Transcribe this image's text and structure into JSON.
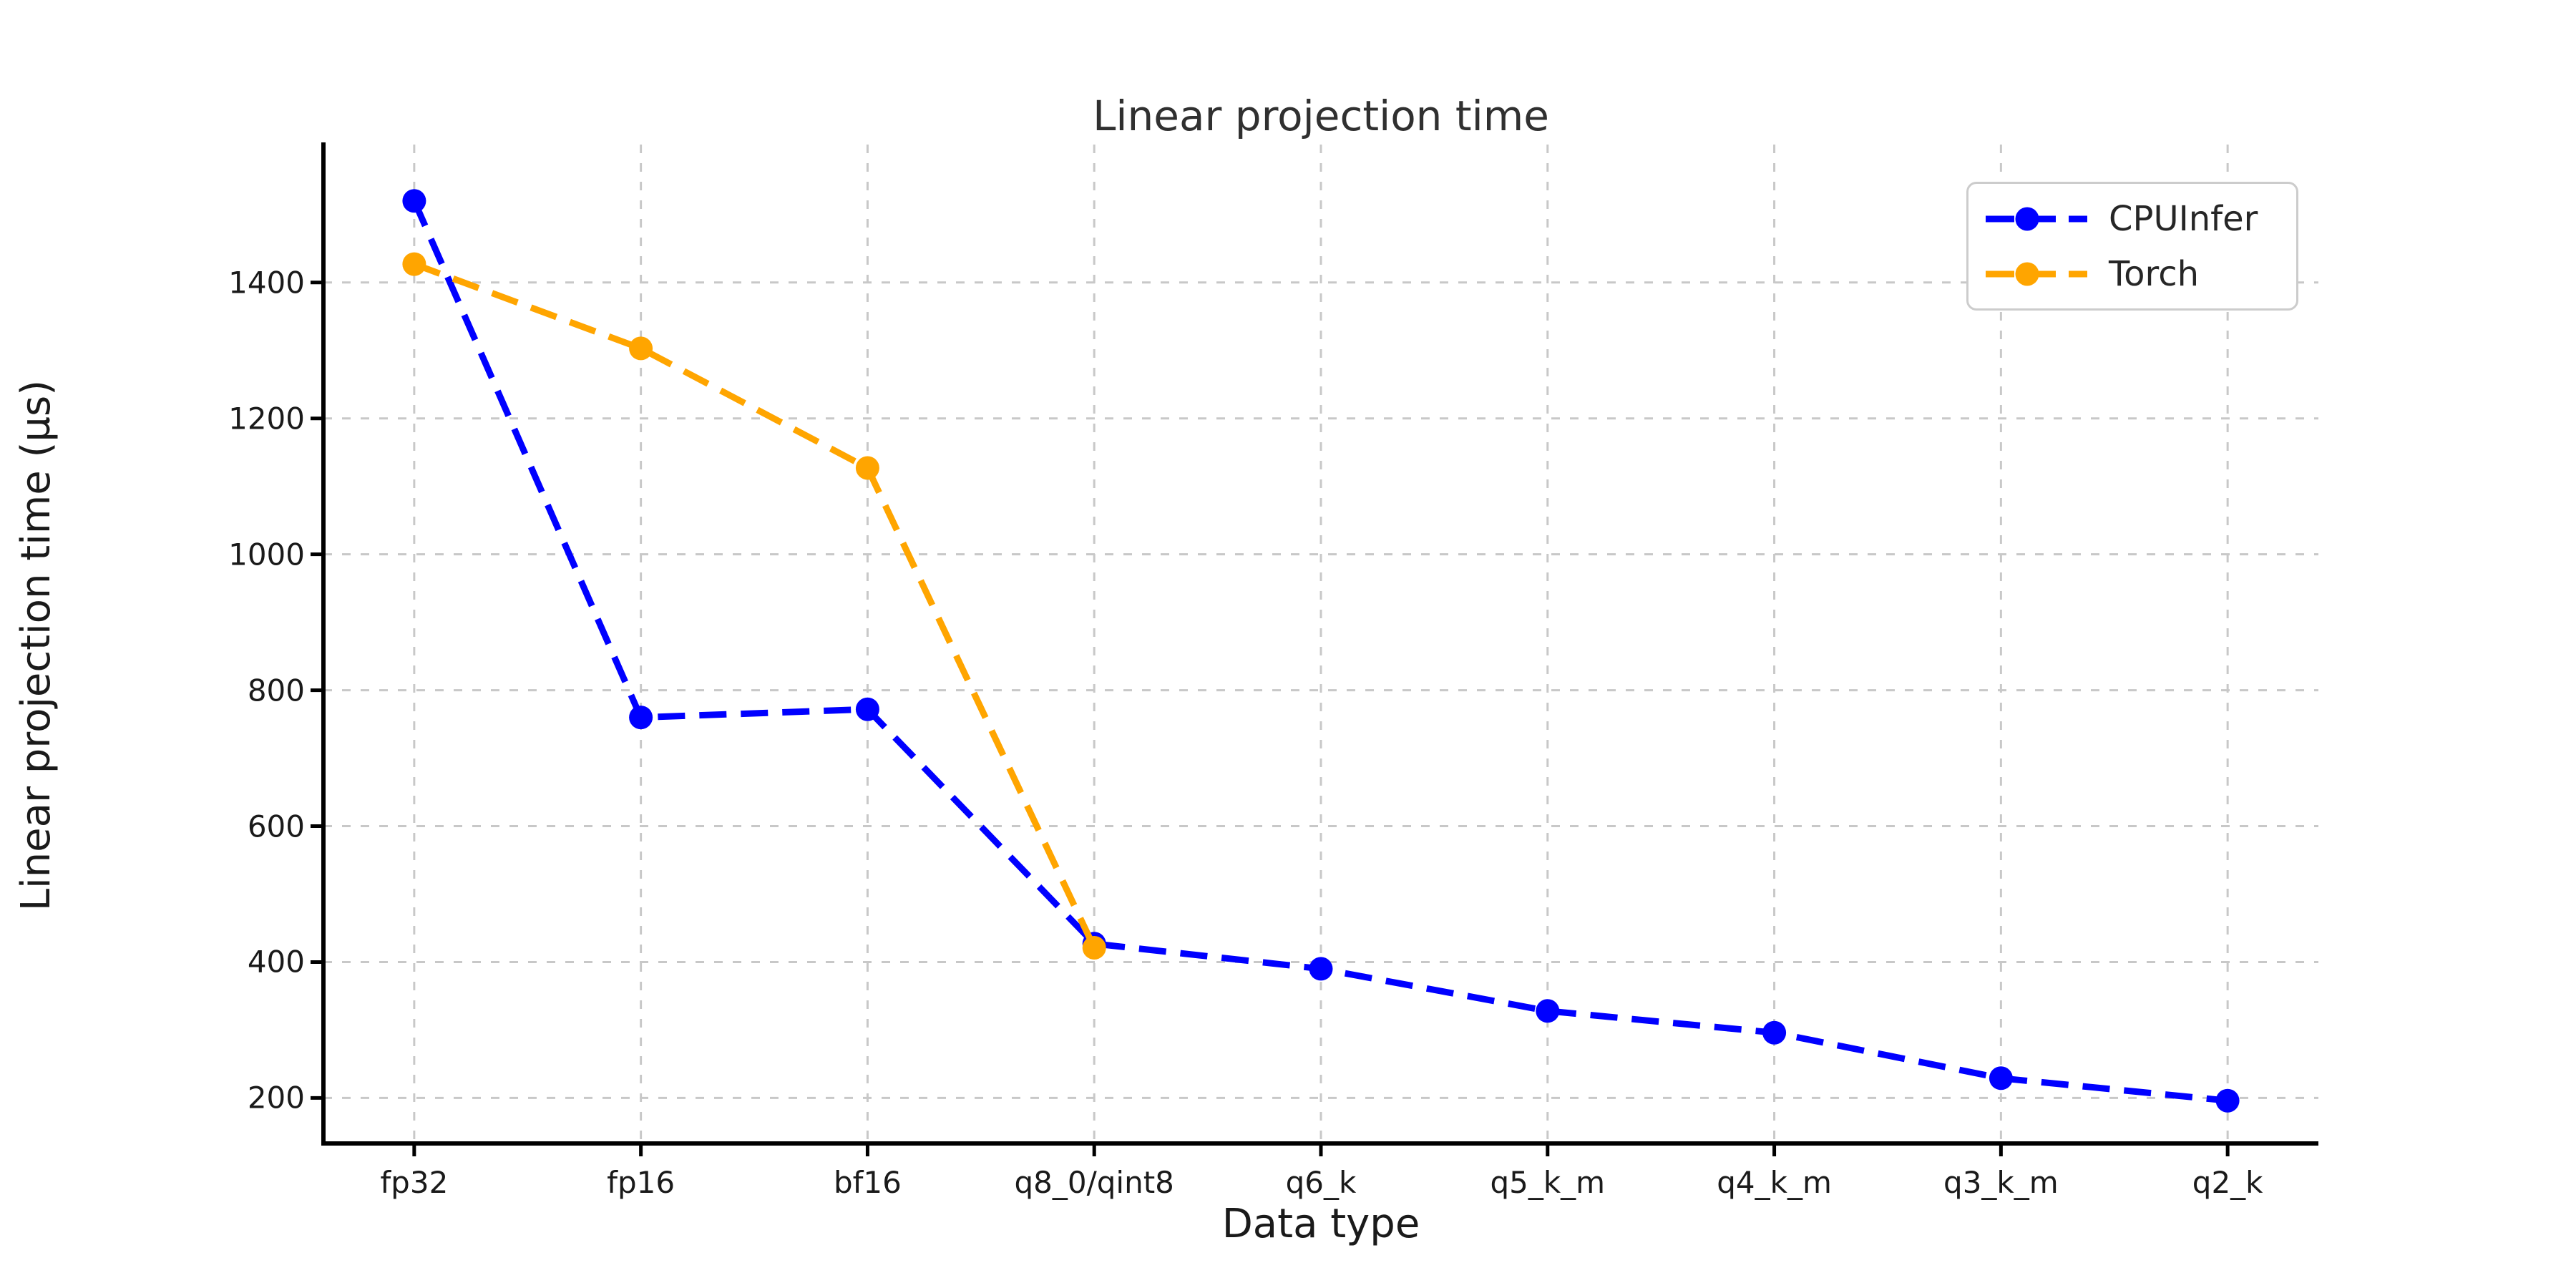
{
  "chart_data": {
    "type": "line",
    "title": "Linear projection time",
    "xlabel": "Data type",
    "ylabel": "Linear projection time (µs)",
    "categories": [
      "fp32",
      "fp16",
      "bf16",
      "q8_0/qint8",
      "q6_k",
      "q5_k_m",
      "q4_k_m",
      "q3_k_m",
      "q2_k"
    ],
    "series": [
      {
        "name": "CPUInfer",
        "color": "#0000ff",
        "values": [
          1520,
          760,
          772,
          427,
          390,
          328,
          296,
          229,
          196
        ]
      },
      {
        "name": "Torch",
        "color": "#ffa500",
        "values": [
          1427,
          1303,
          1127,
          421,
          null,
          null,
          null,
          null,
          null
        ]
      }
    ],
    "yticks": [
      200,
      400,
      600,
      800,
      1000,
      1200,
      1400
    ],
    "ylim": [
      133,
      1603
    ],
    "x_margin_frac": 0.0455,
    "grid": true,
    "grid_color": "#c8c8c8",
    "line_style": "dashed",
    "marker": "circle",
    "legend_position": "upper right",
    "spine_color": "#000000",
    "background": "#ffffff"
  }
}
